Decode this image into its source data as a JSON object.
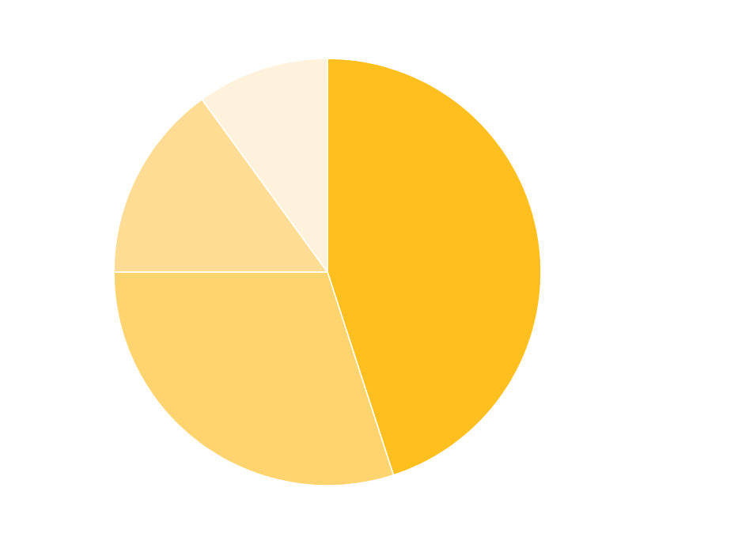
{
  "chart_data": {
    "type": "pie",
    "categories": [
      null,
      null,
      null,
      null
    ],
    "values": [
      45,
      30,
      15,
      10
    ],
    "colors": [
      "#ffbf1f",
      "#ffd36e",
      "#ffdc94",
      "#fff2dc"
    ]
  }
}
